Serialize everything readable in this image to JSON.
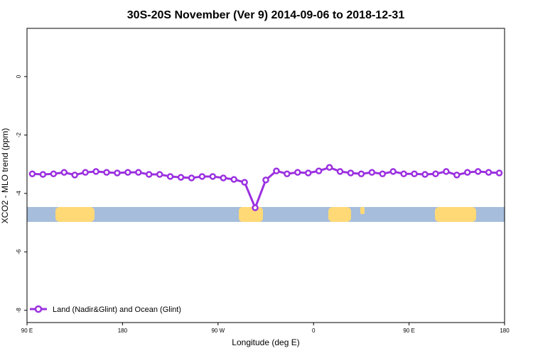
{
  "chart_data": {
    "type": "line",
    "title": "30S-20S November (Ver 9)   2014-09-06 to 2018-12-31",
    "x_label": "Longitude (deg E)",
    "y_label": "XCO2 - MLO trend (ppm)",
    "xlim": [
      90,
      540
    ],
    "ylim": [
      -8.42,
      1.65
    ],
    "xticks": [
      {
        "value": 90,
        "label": "90 E"
      },
      180,
      {
        "value": 270,
        "label": "90 W"
      },
      {
        "value": 360,
        "label": "0"
      },
      {
        "value": 450,
        "label": "90 E"
      },
      {
        "value": 540,
        "label": "180"
      }
    ],
    "yticks": [
      0,
      -2,
      -4,
      -6,
      -8
    ],
    "legend": "bottom-left",
    "x": [
      95,
      105,
      115,
      125,
      135,
      145,
      155,
      165,
      175,
      185,
      195,
      205,
      215,
      225,
      235,
      245,
      255,
      265,
      275,
      285,
      295,
      305,
      315,
      325,
      335,
      345,
      355,
      365,
      375,
      385,
      395,
      405,
      415,
      425,
      435,
      445,
      455,
      465,
      475,
      485,
      495,
      505,
      515,
      525,
      535
    ],
    "series": [
      {
        "name": "Land (Nadir&Glint) and Ocean (Glint)",
        "color": "#9b30e0",
        "values": [
          -3.33,
          -3.35,
          -3.33,
          -3.28,
          -3.37,
          -3.28,
          -3.25,
          -3.28,
          -3.3,
          -3.28,
          -3.28,
          -3.35,
          -3.35,
          -3.42,
          -3.45,
          -3.47,
          -3.42,
          -3.42,
          -3.47,
          -3.52,
          -3.62,
          -4.49,
          -3.54,
          -3.23,
          -3.33,
          -3.28,
          -3.3,
          -3.23,
          -3.11,
          -3.25,
          -3.3,
          -3.33,
          -3.28,
          -3.33,
          -3.25,
          -3.33,
          -3.33,
          -3.35,
          -3.33,
          -3.25,
          -3.37,
          -3.28,
          -3.25,
          -3.28,
          -3.3
        ]
      }
    ]
  }
}
